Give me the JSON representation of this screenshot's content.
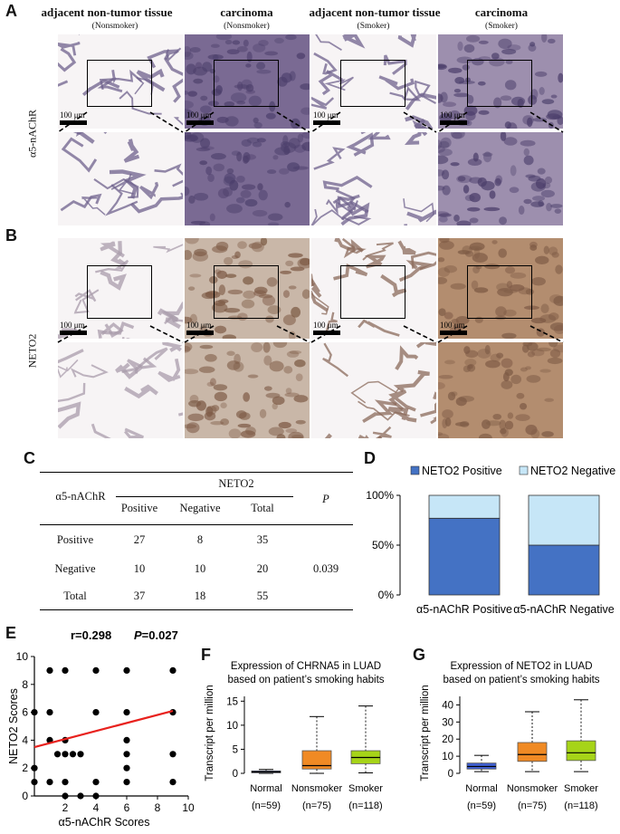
{
  "panels": {
    "A": "A",
    "B": "B",
    "C": "C",
    "D": "D",
    "E": "E",
    "F": "F",
    "G": "G"
  },
  "columns": [
    {
      "title": "adjacent non-tumor tissue",
      "sub": "(Nonsmoker)"
    },
    {
      "title": "carcinoma",
      "sub": "(Nonsmoker)"
    },
    {
      "title": "adjacent non-tumor tissue",
      "sub": "(Smoker)"
    },
    {
      "title": "carcinoma",
      "sub": "(Smoker)"
    }
  ],
  "row_labels": {
    "a5": "α5-nAChR",
    "neto2": "NETO2"
  },
  "scale_label": "100 μm",
  "colors": {
    "a5_nonsmoker_adj": "#c9bfd8",
    "a5_nonsmoker_carc": "#7a6a93",
    "a5_smoker_adj": "#d6cedf",
    "a5_smoker_carc": "#9d8fae",
    "neto2_nonsmoker_adj": "#e8e2e6",
    "neto2_nonsmoker_carc": "#c9b7a8",
    "neto2_smoker_adj": "#c7b3a6",
    "neto2_smoker_carc": "#b38d6f",
    "positive": "#4472c4",
    "negative": "#c6e6f7",
    "regression": "#e8211d",
    "normal_box": "#3f5fd1",
    "nonsmoker_box": "#f08a24",
    "smoker_box": "#a6d418"
  },
  "table": {
    "row_header": "α5-nAChR",
    "group_header": "NETO2",
    "col_positive": "Positive",
    "col_negative": "Negative",
    "col_total": "Total",
    "col_p": "P",
    "rows": [
      {
        "label": "Positive",
        "pos": "27",
        "neg": "8",
        "total": "35",
        "p": ""
      },
      {
        "label": "Negative",
        "pos": "10",
        "neg": "10",
        "total": "20",
        "p": "0.039"
      },
      {
        "label": "Total",
        "pos": "37",
        "neg": "18",
        "total": "55",
        "p": ""
      }
    ]
  },
  "chart_data": [
    {
      "id": "D",
      "type": "bar",
      "stacked": true,
      "categories": [
        "α5-nAChR Positive",
        "α5-nAChR Negative"
      ],
      "series": [
        {
          "name": "NETO2 Positive",
          "values": [
            77,
            50
          ]
        },
        {
          "name": "NETO2 Negative",
          "values": [
            23,
            50
          ]
        }
      ],
      "yticks": [
        "0%",
        "50%",
        "100%"
      ],
      "ylim": [
        0,
        100
      ],
      "legend": "top"
    },
    {
      "id": "E",
      "type": "scatter",
      "annotation_r": "r=0.298",
      "annotation_p_label": "P",
      "annotation_p_value": "=0.027",
      "xlabel": "α5-nAChR Scores",
      "ylabel": "NETO2 Scores",
      "xlim": [
        0,
        10
      ],
      "ylim": [
        0,
        10
      ],
      "xticks": [
        "2",
        "4",
        "6",
        "8",
        "10"
      ],
      "yticks": [
        "0",
        "2",
        "4",
        "6",
        "8",
        "10"
      ],
      "points": [
        [
          0,
          1
        ],
        [
          0,
          2
        ],
        [
          0,
          6
        ],
        [
          1,
          1
        ],
        [
          1,
          4
        ],
        [
          1,
          6
        ],
        [
          1,
          9
        ],
        [
          1.5,
          3
        ],
        [
          2,
          0
        ],
        [
          2,
          1
        ],
        [
          2,
          3
        ],
        [
          2,
          4
        ],
        [
          2,
          9
        ],
        [
          2.5,
          3
        ],
        [
          3,
          0
        ],
        [
          3,
          3
        ],
        [
          4,
          0
        ],
        [
          4,
          1
        ],
        [
          4,
          6
        ],
        [
          4,
          9
        ],
        [
          6,
          1
        ],
        [
          6,
          2
        ],
        [
          6,
          3
        ],
        [
          6,
          4
        ],
        [
          6,
          6
        ],
        [
          6,
          9
        ],
        [
          9,
          1
        ],
        [
          9,
          3
        ],
        [
          9,
          6
        ],
        [
          9,
          9
        ]
      ],
      "regression": {
        "x": [
          0,
          9
        ],
        "y": [
          3.5,
          6.1
        ]
      }
    },
    {
      "id": "F",
      "type": "box",
      "title_line1": "Expression of CHRNA5 in LUAD",
      "title_line2": "based on patient’s smoking habits",
      "ylabel": "Transcript per million",
      "ylim": [
        0,
        16
      ],
      "yticks": [
        "0",
        "5",
        "10",
        "15"
      ],
      "groups": [
        {
          "name": "Normal",
          "n": "(n=59)",
          "min": 0,
          "q1": 0.1,
          "median": 0.3,
          "q3": 0.5,
          "max": 0.8
        },
        {
          "name": "Nonsmoker",
          "n": "(n=75)",
          "min": 0,
          "q1": 0.9,
          "median": 1.6,
          "q3": 4.7,
          "max": 11.8
        },
        {
          "name": "Smoker",
          "n": "(n=118)",
          "min": 0.1,
          "q1": 2.0,
          "median": 3.3,
          "q3": 4.7,
          "max": 14.0
        }
      ]
    },
    {
      "id": "G",
      "type": "box",
      "title_line1": "Expression of NETO2 in LUAD",
      "title_line2": "based on patient’s smoking habits",
      "ylabel": "Transcript per million",
      "ylim": [
        0,
        45
      ],
      "yticks": [
        "0",
        "10",
        "20",
        "30",
        "40"
      ],
      "groups": [
        {
          "name": "Normal",
          "n": "(n=59)",
          "min": 1,
          "q1": 2.5,
          "median": 4,
          "q3": 6,
          "max": 10.5
        },
        {
          "name": "Nonsmoker",
          "n": "(n=75)",
          "min": 1,
          "q1": 7,
          "median": 11,
          "q3": 18,
          "max": 36
        },
        {
          "name": "Smoker",
          "n": "(n=118)",
          "min": 1,
          "q1": 7.5,
          "median": 12,
          "q3": 19,
          "max": 43
        }
      ]
    }
  ]
}
